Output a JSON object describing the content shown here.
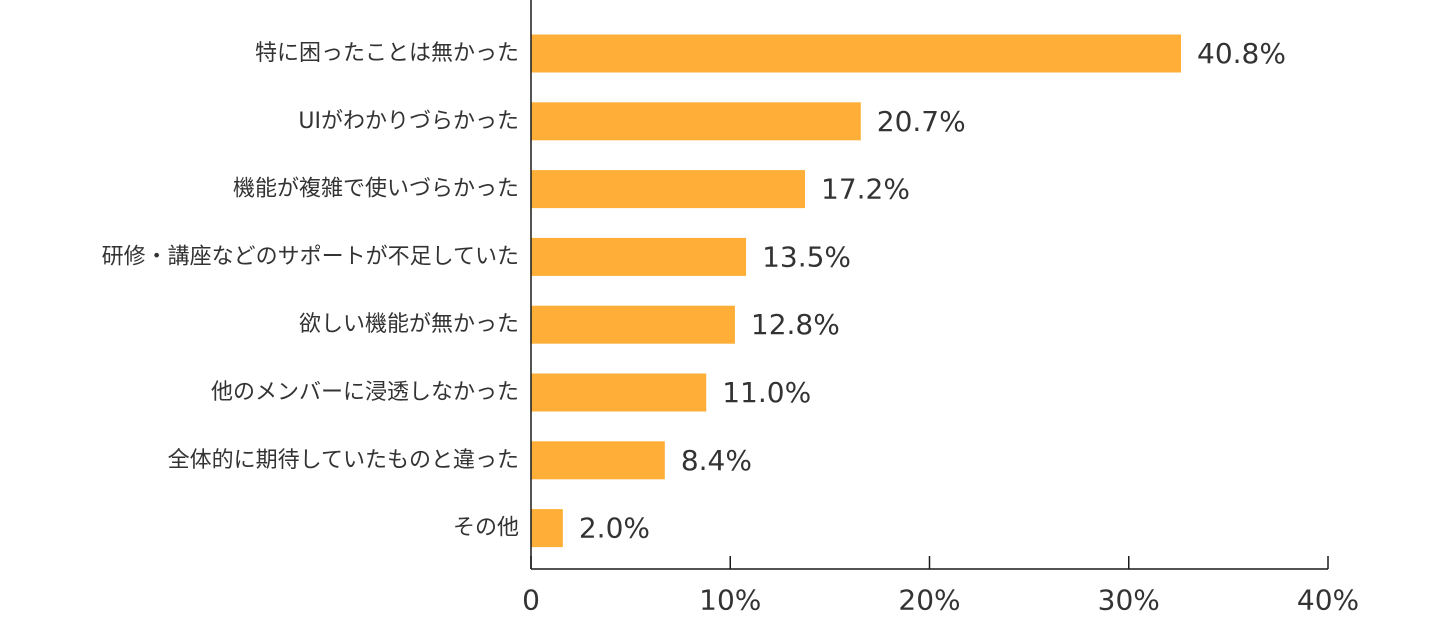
{
  "chart_data": {
    "type": "bar",
    "orientation": "horizontal",
    "categories": [
      "特に困ったことは無かった",
      "UIがわかりづらかった",
      "機能が複雑で使いづらかった",
      "研修・講座などのサポートが不足していた",
      "欲しい機能が無かった",
      "他のメンバーに浸透しなかった",
      "全体的に期待していたものと違った",
      "その他"
    ],
    "values": [
      40.8,
      20.7,
      17.2,
      13.5,
      12.8,
      11.0,
      8.4,
      2.0
    ],
    "value_labels": [
      "40.8%",
      "20.7%",
      "17.2%",
      "13.5%",
      "12.8%",
      "11.0%",
      "8.4%",
      "2.0%"
    ],
    "xlim": [
      0,
      40
    ],
    "xticks": [
      0,
      10,
      20,
      30,
      40
    ],
    "xtick_labels": [
      "0",
      "10%",
      "20%",
      "30%",
      "40%"
    ],
    "title": "",
    "xlabel": "",
    "ylabel": "",
    "grid": false,
    "legend": "none",
    "colors": {
      "bar": "#FFAE37",
      "axis": "#1a1a1a",
      "text": "#333333"
    }
  }
}
